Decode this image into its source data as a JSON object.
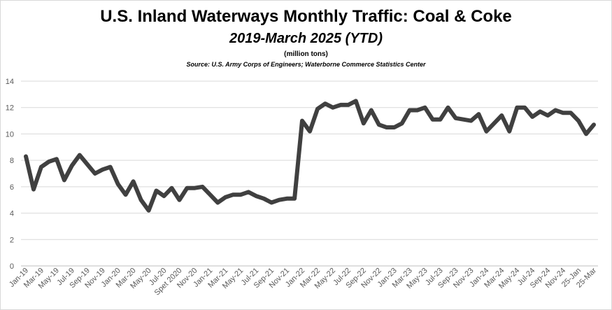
{
  "chart_data": {
    "type": "line",
    "title": "U.S. Inland Waterways Monthly Traffic:  Coal & Coke",
    "subtitle": "2019-March 2025 (YTD)",
    "units": "(million tons)",
    "source": "Source:  U.S. Army Corps of Engineers; Waterborne Commerce Statistics Center",
    "ylim": [
      0,
      14
    ],
    "yticks": [
      0,
      2,
      4,
      6,
      8,
      10,
      12,
      14
    ],
    "grid": true,
    "legend": "none",
    "line_color": "#404040",
    "grid_color": "#d9d9d9",
    "x_tick_labels": [
      "Jan-19",
      "Mar-19",
      "May-19",
      "Jul-19",
      "Sep-19",
      "Nov-19",
      "Jan-20",
      "Mar-20",
      "May-20",
      "Jul-20",
      "Spet 2020",
      "Nov-20",
      "Jan-21",
      "Mar-21",
      "May-21",
      "Jul-21",
      "Sep-21",
      "Nov-21",
      "Jan-22",
      "Mar-22",
      "May-22",
      "Jul-22",
      "Sep-22",
      "Nov-22",
      "Jan-23",
      "Mar-23",
      "May-23",
      "Jul-23",
      "Sep-23",
      "Nov-23",
      "Jan-24",
      "Mar-24",
      "May-24",
      "Jul-24",
      "Sep-24",
      "Nov-24",
      "25-Jan",
      "25-Mar"
    ],
    "x_tick_positions": [
      0,
      2,
      4,
      6,
      8,
      10,
      12,
      14,
      16,
      18,
      20,
      22,
      24,
      26,
      28,
      30,
      32,
      34,
      36,
      38,
      40,
      42,
      44,
      46,
      48,
      50,
      52,
      54,
      56,
      58,
      60,
      62,
      64,
      66,
      68,
      70,
      72,
      74
    ],
    "series": [
      {
        "values": [
          8.3,
          5.8,
          7.5,
          7.9,
          8.1,
          6.5,
          7.6,
          8.4,
          7.7,
          7.0,
          7.3,
          7.5,
          6.2,
          5.4,
          6.4,
          5.0,
          4.2,
          5.7,
          5.3,
          5.9,
          5.0,
          5.9,
          5.9,
          6.0,
          5.4,
          4.8,
          5.2,
          5.4,
          5.4,
          5.6,
          5.3,
          5.1,
          4.8,
          5.0,
          5.1,
          5.1,
          11.0,
          10.2,
          11.9,
          12.3,
          12.0,
          12.2,
          12.2,
          12.5,
          10.8,
          11.8,
          10.7,
          10.5,
          10.5,
          10.8,
          11.8,
          11.8,
          12.0,
          11.1,
          11.1,
          12.0,
          11.2,
          11.1,
          11.0,
          11.5,
          10.2,
          10.8,
          11.4,
          10.2,
          12.0,
          12.0,
          11.3,
          11.7,
          11.4,
          11.8,
          11.6,
          11.6,
          11.0,
          10.0,
          10.7
        ]
      }
    ]
  }
}
